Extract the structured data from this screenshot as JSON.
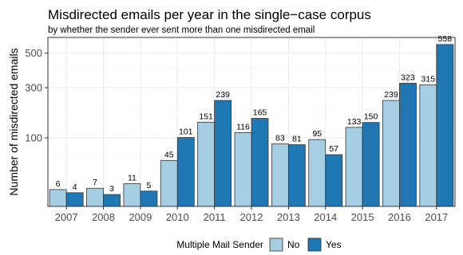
{
  "chart_data": {
    "type": "bar",
    "title": "Misdirected emails per year in the single−case corpus",
    "subtitle": "by whether the sender ever sent more than one misdirected email",
    "xlabel": "",
    "ylabel": "Number of misdirected emails",
    "categories": [
      "2007",
      "2008",
      "2009",
      "2010",
      "2011",
      "2012",
      "2013",
      "2014",
      "2015",
      "2016",
      "2017"
    ],
    "series": [
      {
        "name": "No",
        "values": [
          6,
          7,
          11,
          45,
          151,
          116,
          83,
          95,
          133,
          239,
          315
        ],
        "color": "#a6cee3"
      },
      {
        "name": "Yes",
        "values": [
          4,
          3,
          5,
          101,
          239,
          165,
          81,
          57,
          150,
          323,
          558
        ],
        "color": "#1f78b4"
      }
    ],
    "y_scale": "sqrt",
    "ylim": [
      0,
      620
    ],
    "y_ticks": [
      100,
      300,
      500
    ],
    "y_tick_labels": [
      "100",
      "300",
      "500"
    ],
    "grid": true,
    "legend": {
      "title": "Multiple Mail Sender",
      "position": "bottom",
      "entries": [
        "No",
        "Yes"
      ]
    }
  }
}
